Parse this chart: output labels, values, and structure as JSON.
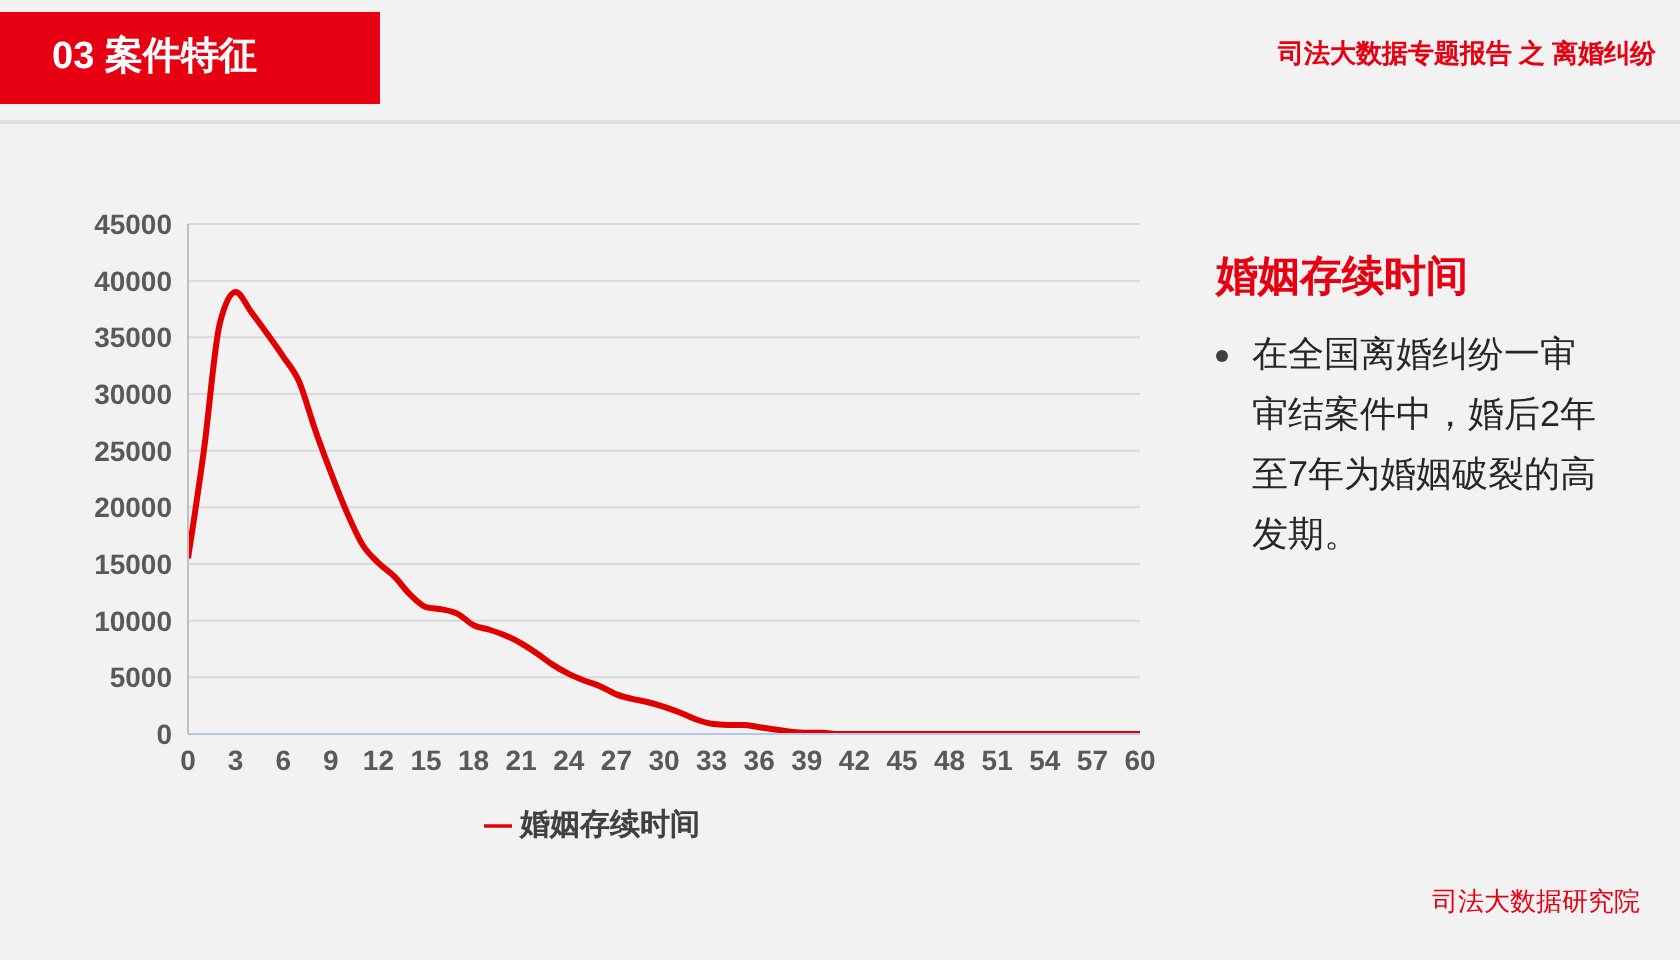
{
  "chart_data": {
    "type": "line",
    "title": "婚姻存续时间",
    "annotations": [
      "03 案件特征",
      "司法大数据专题报告 之 离婚纠纷",
      "在全国离婚纠纷一审审结案件中，婚后2年至7年为婚姻破裂的高发期。",
      "司法大数据研究院"
    ],
    "x": [
      0,
      1,
      2,
      3,
      4,
      5,
      6,
      7,
      8,
      9,
      10,
      11,
      12,
      13,
      14,
      15,
      16,
      17,
      18,
      19,
      20,
      21,
      22,
      23,
      24,
      25,
      26,
      27,
      28,
      29,
      30,
      31,
      32,
      33,
      34,
      35,
      36,
      37,
      38,
      39,
      40,
      41,
      42,
      43,
      44,
      45,
      46,
      47,
      48,
      49,
      50,
      51,
      52,
      53,
      54,
      55,
      56,
      57,
      58,
      59,
      60
    ],
    "series": [
      {
        "name": "婚姻存续时间",
        "color": "#e00000",
        "values": [
          15500,
          25000,
          36200,
          39000,
          37200,
          35300,
          33300,
          31100,
          26900,
          23100,
          19600,
          16700,
          15100,
          13900,
          12300,
          11200,
          11000,
          10600,
          9600,
          9200,
          8700,
          8000,
          7100,
          6100,
          5300,
          4700,
          4200,
          3500,
          3100,
          2800,
          2400,
          1900,
          1300,
          900,
          800,
          800,
          600,
          400,
          200,
          100,
          100,
          0,
          0,
          0,
          0,
          0,
          0,
          0,
          0,
          0,
          0,
          0,
          0,
          0,
          0,
          0,
          0,
          0,
          0,
          0,
          0
        ]
      }
    ],
    "xlim": [
      0,
      60
    ],
    "xticks": [
      0,
      3,
      6,
      9,
      12,
      15,
      18,
      21,
      24,
      27,
      30,
      33,
      36,
      39,
      42,
      45,
      48,
      51,
      54,
      57,
      60
    ],
    "ylim": [
      0,
      45000
    ],
    "yticks": [
      0,
      5000,
      10000,
      15000,
      20000,
      25000,
      30000,
      35000,
      40000,
      45000
    ],
    "grid": "y",
    "legend": "bottom",
    "marker": "none",
    "line_style": "solid"
  }
}
